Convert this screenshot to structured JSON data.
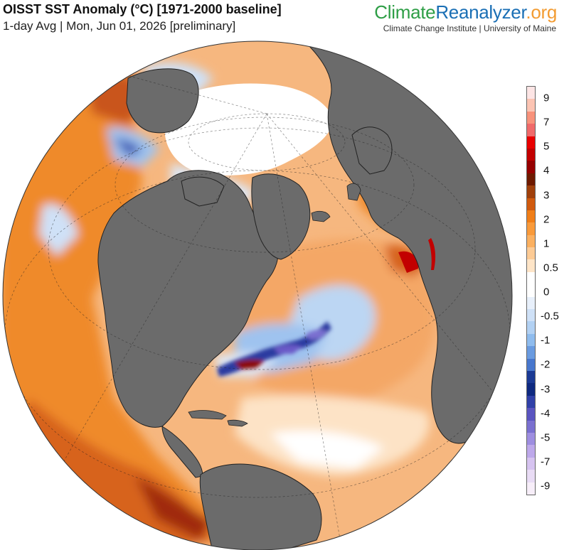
{
  "header": {
    "title": "OISST SST Anomaly (°C) [1971-2000 baseline]",
    "subtitle": "1-day Avg | Mon, Jun 01, 2026 [preliminary]"
  },
  "brand": {
    "part1": "Climate",
    "part2": "Reanalyzer",
    "part3": ".org",
    "tagline": "Climate Change Institute | University of Maine",
    "colors": {
      "part1": "#2e9e46",
      "part2": "#1a6fb5",
      "part3": "#f39c32"
    }
  },
  "map": {
    "projection": "orthographic",
    "land_color": "#6b6b6b",
    "ice_color": "#ffffff",
    "graticule": true
  },
  "legend": {
    "labels": [
      "9",
      "7",
      "5",
      "4",
      "3",
      "2",
      "1",
      "0.5",
      "0",
      "-0.5",
      "-1",
      "-2",
      "-3",
      "-4",
      "-5",
      "-7",
      "-9"
    ],
    "colors": [
      "#fde5e5",
      "#fcc4b3",
      "#f8927b",
      "#f06a6a",
      "#e80000",
      "#c20000",
      "#960000",
      "#6f1a00",
      "#a0400b",
      "#d05a0e",
      "#f07e18",
      "#f99a3a",
      "#fbb060",
      "#fdcb95",
      "#fee5c8",
      "#ffffff",
      "#ffffff",
      "#e8f0fb",
      "#cfe1f7",
      "#b2d1f3",
      "#8fbcee",
      "#6a9be0",
      "#4877cd",
      "#1b3a95",
      "#0e2980",
      "#3040a8",
      "#5a54c0",
      "#7a70d0",
      "#9e8ee0",
      "#bda8ea",
      "#d6c3f0",
      "#e9dcf5",
      "#f7eef9"
    ]
  }
}
